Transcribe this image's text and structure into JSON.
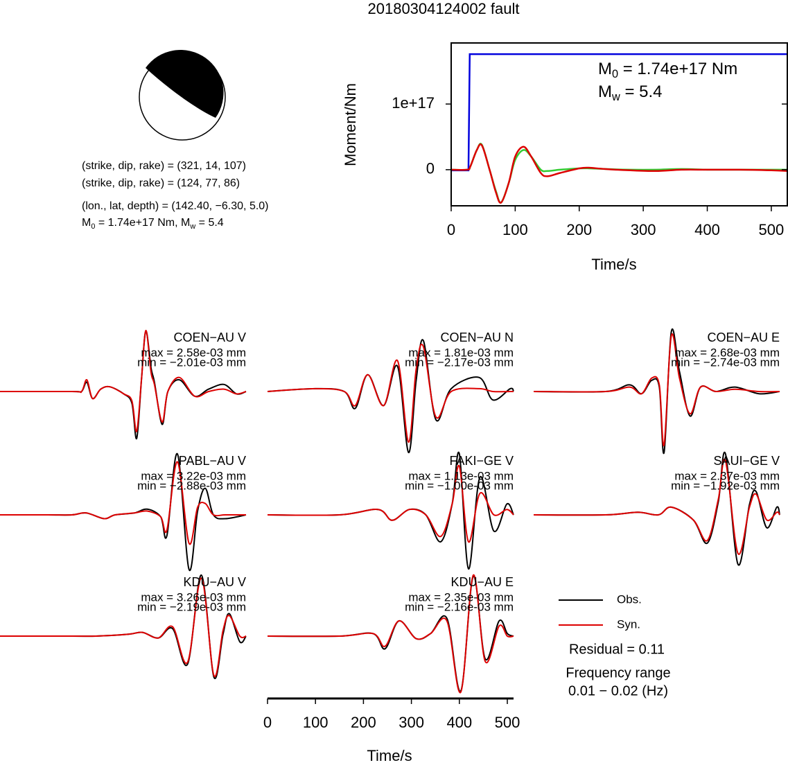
{
  "title": "20180304124002 fault",
  "mechanism": {
    "lines": [
      "(strike, dip, rake) = (321, 14, 107)",
      "(strike, dip, rake) = (124, 77, 86)",
      "(lon., lat, depth) = (142.40, −6.30, 5.0)"
    ],
    "moment": [
      {
        "text": "M"
      },
      {
        "sub": "0"
      },
      {
        "text": " = 1.74e+17 Nm, M"
      },
      {
        "sub": "w"
      },
      {
        "text": " = 5.4"
      }
    ]
  },
  "chart_data": [
    {
      "type": "line",
      "xlabel": "Time/s",
      "ylabel": "Moment/Nm",
      "xlim": [
        0,
        525
      ],
      "ylim": [
        -5.5e+16,
        1.93e+17
      ],
      "xticks": [
        0,
        100,
        200,
        300,
        400,
        500
      ],
      "yticks": [
        0,
        {
          "value": 1e+17,
          "label": "1e+17"
        }
      ],
      "annotations": [
        [
          {
            "text": "M"
          },
          {
            "sub": "0"
          },
          {
            "text": " = 1.74e+17 Nm"
          }
        ],
        [
          {
            "text": "M"
          },
          {
            "sub": "w"
          },
          {
            "text": " = 5.4"
          }
        ]
      ],
      "series": [
        {
          "color": "#0000dd",
          "x": [
            0,
            27,
            29,
            525
          ],
          "values": [
            -1000000000000000.0,
            -1000000000000000.0,
            1.76e+17,
            1.76e+17
          ]
        },
        {
          "color": "#33cc33",
          "x": [
            0,
            25,
            30,
            40,
            48,
            60,
            70,
            78,
            90,
            100,
            113,
            125,
            140,
            150,
            170,
            200,
            215,
            240,
            280,
            320,
            360,
            400,
            450,
            500,
            525
          ],
          "values": [
            0,
            0,
            5000000000000000.0,
            3e+16,
            3.8e+16,
            0,
            -3.3e+16,
            -5e+16,
            -2e+16,
            1.5e+16,
            3e+16,
            2e+16,
            0,
            -2000000000000000.0,
            0,
            2000000000000000.0,
            2000000000000000.0,
            1000000000000000.0,
            0,
            0,
            1000000000000000.0,
            0,
            0,
            0,
            0
          ]
        },
        {
          "color": "#dd0000",
          "x": [
            0,
            25,
            30,
            40,
            48,
            60,
            70,
            78,
            90,
            100,
            113,
            125,
            140,
            150,
            170,
            200,
            215,
            240,
            280,
            320,
            360,
            400,
            450,
            500,
            525
          ],
          "values": [
            0,
            0,
            5000000000000000.0,
            3e+16,
            3.7e+16,
            0,
            -3.5e+16,
            -5e+16,
            -2e+16,
            2e+16,
            3.5e+16,
            2e+16,
            -5000000000000000.0,
            -1e+16,
            -5000000000000000.0,
            2000000000000000.0,
            3000000000000000.0,
            1000000000000000.0,
            -1000000000000000.0,
            -2000000000000000.0,
            0,
            0,
            0,
            -1000000000000000.0,
            -2000000000000000.0
          ]
        }
      ]
    },
    {
      "type": "waveforms",
      "xlabel": "Time/s",
      "xlim": [
        0,
        513
      ],
      "xticks": [
        0,
        100,
        200,
        300,
        400,
        500
      ],
      "legend": [
        {
          "name": "Obs.",
          "color": "#000000"
        },
        {
          "name": "Syn.",
          "color": "#dd0000"
        }
      ],
      "residual": "Residual = 0.11",
      "frequency_label": "Frequency range",
      "frequency_range": "0.01 − 0.02 (Hz)",
      "panels": [
        {
          "name": "COEN−AU V",
          "max_label": "max = 2.58e-03 mm",
          "min_label": "min = −2.01e-03 mm",
          "x": [
            0,
            150,
            170,
            181,
            193,
            210,
            229,
            258,
            275,
            285,
            295,
            304,
            315,
            322,
            338,
            350,
            374,
            406,
            435,
            467,
            493,
            513
          ],
          "obs": [
            0,
            0,
            0,
            0.0004,
            -0.0003,
            0.0001,
            0.0002,
            -0.0001,
            -0.0005,
            -0.002,
            0.0005,
            0.00258,
            0.001,
            0.0004,
            -0.0014,
            0,
            0.0005,
            -0.0002,
            0.0001,
            0.0003,
            -0.0001,
            0
          ],
          "syn": [
            0,
            0,
            0,
            0.0005,
            -0.0003,
            0.0001,
            0.0002,
            -0.0001,
            -0.0004,
            -0.0017,
            0.0005,
            0.0026,
            0.0008,
            0.0003,
            -0.0013,
            0,
            0.0006,
            -0.0002,
            0,
            0.0001,
            -0.0001,
            0
          ]
        },
        {
          "name": "COEN−AU N",
          "max_label": "max = 1.81e-03 mm",
          "min_label": "min = −2.17e-03 mm",
          "x": [
            0,
            100,
            160,
            183,
            209,
            242,
            271,
            294,
            310,
            325,
            351,
            383,
            441,
            470,
            506,
            513
          ],
          "obs": [
            0,
            0.0001,
            0,
            -0.0006,
            0.0006,
            -0.0005,
            0.0009,
            -0.00217,
            0.0004,
            0.00181,
            -0.001,
            0.0001,
            0.0005,
            -0.0003,
            0.0001,
            0
          ],
          "syn": [
            0,
            0.0001,
            0,
            -0.0005,
            0.0006,
            -0.0005,
            0.0011,
            -0.0018,
            0.0008,
            0.0016,
            -0.0009,
            0,
            0.0001,
            0,
            0,
            0
          ]
        },
        {
          "name": "COEN−AU E",
          "max_label": "max = 2.68e-03 mm",
          "min_label": "min = −2.74e-03 mm",
          "x": [
            0,
            150,
            200,
            225,
            246,
            262,
            272,
            287,
            304,
            326,
            348,
            380,
            420,
            470,
            513
          ],
          "obs": [
            0,
            0,
            0.0003,
            -0.0001,
            0.0005,
            0.0002,
            -0.00274,
            0.00268,
            0.0009,
            -0.0011,
            0.0002,
            0,
            0.0002,
            -0.0001,
            0
          ],
          "syn": [
            0,
            0,
            0.0002,
            -0.0001,
            0.0006,
            0.0003,
            -0.0024,
            0.0025,
            0.0006,
            -0.001,
            0.0002,
            0,
            0.0001,
            0,
            0
          ]
        },
        {
          "name": "PABL−AU V",
          "max_label": "max = 3.22e-03 mm",
          "min_label": "min = −2.88e-03 mm",
          "x": [
            0,
            100,
            150,
            180,
            217,
            240,
            280,
            307,
            335,
            348,
            370,
            394,
            412,
            428,
            445,
            470,
            513
          ],
          "obs": [
            0,
            0,
            0,
            0.0001,
            -0.0002,
            0,
            0.0001,
            0.0003,
            -0.0001,
            -0.0011,
            0.00322,
            -0.00288,
            0.0002,
            0.0014,
            0,
            -0.0002,
            0
          ],
          "syn": [
            0,
            0,
            0,
            0.0001,
            -0.0002,
            0,
            0.0001,
            0.0002,
            -0.0001,
            -0.0008,
            0.0028,
            -0.0015,
            0.0004,
            0.0006,
            0,
            0,
            0
          ]
        },
        {
          "name": "FAKI−GE V",
          "max_label": "max = 1.13e-03 mm",
          "min_label": "min = −1.00e-03 mm",
          "x": [
            0,
            150,
            230,
            260,
            296,
            330,
            361,
            385,
            400,
            419,
            443,
            472,
            499,
            513
          ],
          "obs": [
            0,
            0,
            0.0001,
            -0.0001,
            0.0001,
            0,
            -0.0005,
            0.0002,
            0.00113,
            -0.001,
            0.0007,
            -0.0003,
            0.0002,
            0
          ],
          "syn": [
            0,
            0,
            0.0001,
            -0.0001,
            0.0001,
            0,
            -0.0004,
            0.0002,
            0.0009,
            -0.0005,
            0.0004,
            0,
            0.0001,
            0
          ]
        },
        {
          "name": "SAUI−GE V",
          "max_label": "max = 2.37e-03 mm",
          "min_label": "min = −1.92e-03 mm",
          "x": [
            0,
            150,
            217,
            260,
            287,
            333,
            362,
            385,
            400,
            426,
            450,
            464,
            486,
            507,
            513
          ],
          "obs": [
            0,
            0,
            0.0001,
            0,
            0.0003,
            -0.0002,
            -0.0011,
            0.0005,
            0.00237,
            -0.00192,
            0.0004,
            0.0009,
            -0.0005,
            0.0003,
            0
          ],
          "syn": [
            0,
            0,
            0.0001,
            0,
            0.0003,
            -0.0002,
            -0.001,
            0.0006,
            0.0021,
            -0.0015,
            0.0003,
            0.0008,
            -0.0002,
            0.0001,
            0
          ]
        },
        {
          "name": "KDU−AU V",
          "max_label": "max = 3.26e-03 mm",
          "min_label": "min = −2.19e-03 mm",
          "x": [
            0,
            150,
            200,
            268,
            297,
            330,
            360,
            391,
            420,
            446,
            465,
            478,
            500,
            513
          ],
          "obs": [
            0,
            0,
            0,
            0.0001,
            0.0002,
            -0.0001,
            0.0004,
            -0.0015,
            0.00326,
            -0.00219,
            0.0001,
            0.0012,
            -0.0003,
            0
          ],
          "syn": [
            0,
            0,
            0,
            0.0001,
            0.0002,
            -0.0001,
            0.0005,
            -0.0014,
            0.0031,
            -0.0021,
            0.0003,
            0.0011,
            0,
            0
          ]
        },
        {
          "name": "KDU−AU E",
          "max_label": "max = 2.35e-03 mm",
          "min_label": "min = −2.16e-03 mm",
          "x": [
            0,
            150,
            220,
            245,
            274,
            310,
            340,
            374,
            403,
            429,
            454,
            483,
            500,
            513
          ],
          "obs": [
            0,
            0,
            0.0001,
            -0.0005,
            0.0006,
            -0.0001,
            0.0001,
            0.0007,
            -0.00216,
            0.00235,
            -0.0009,
            0.0006,
            0.0001,
            0
          ],
          "syn": [
            0,
            0,
            0.0001,
            -0.0004,
            0.0006,
            -0.0001,
            0.0001,
            0.0006,
            -0.0022,
            0.0024,
            -0.001,
            0.0004,
            0,
            0
          ]
        }
      ]
    }
  ]
}
